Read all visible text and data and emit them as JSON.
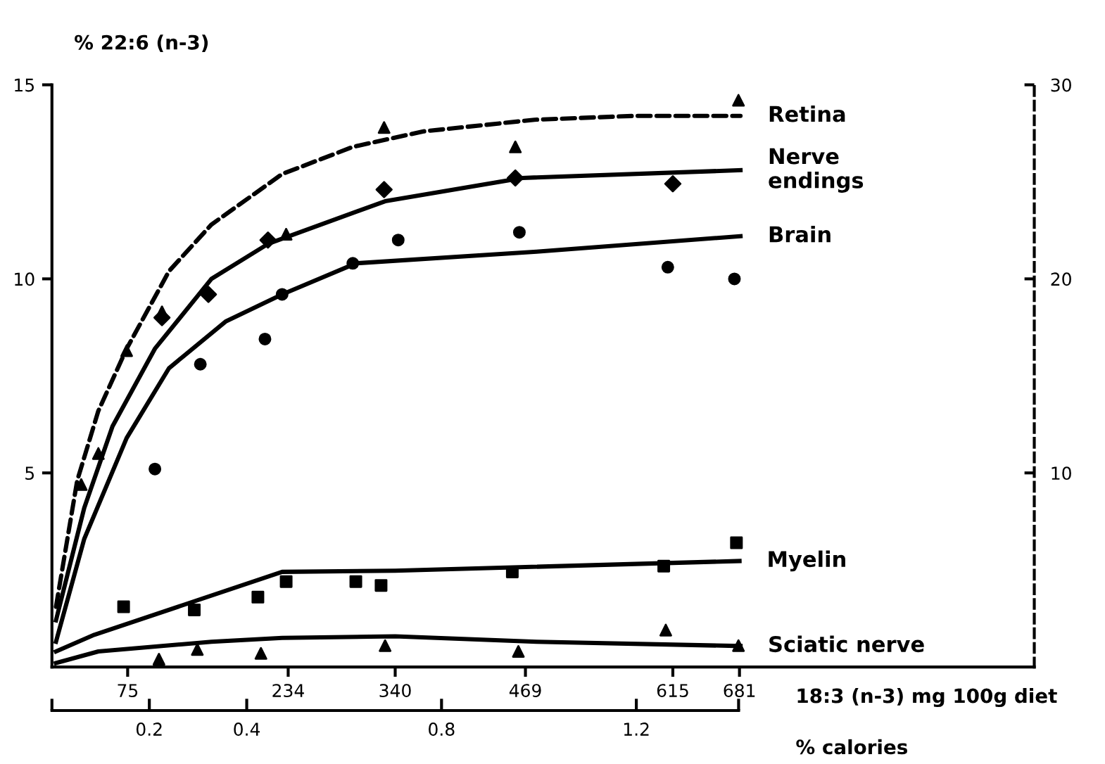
{
  "chart_data": {
    "type": "line",
    "ylabel": "% 22:6 (n-3)",
    "xlabel": "18:3 (n-3) mg 100g diet",
    "x2label": "% calories",
    "xlim": [
      0,
      973
    ],
    "xticks": [
      75,
      234,
      340,
      469,
      615,
      681
    ],
    "x2lim": [
      0,
      1.41
    ],
    "x2ticks": [
      {
        "value": 0,
        "label": null
      },
      0.2,
      0.4,
      0.8,
      1.2,
      {
        "value": 1.41,
        "label": null
      }
    ],
    "ylim": [
      0,
      15
    ],
    "yticks": [
      5,
      10,
      15
    ],
    "y2lim": [
      0,
      30
    ],
    "y2ticks": [
      10,
      20,
      30
    ],
    "legend": false,
    "grid": false,
    "series": [
      {
        "name": "Retina",
        "axis": "y2",
        "color": "#000000",
        "line_style": "dashed",
        "marker": "none",
        "x": [
          4,
          25,
          46,
          74,
          116,
          158,
          228,
          298,
          368,
          478,
          577,
          682
        ],
        "values": [
          3.1,
          9.6,
          13.2,
          16.4,
          20.4,
          22.8,
          25.4,
          26.8,
          27.6,
          28.2,
          28.4,
          28.4
        ]
      },
      {
        "name": "Nerve\nendings",
        "color": "#000000",
        "line_style": "solid",
        "marker": "none",
        "x": [
          4,
          32,
          60,
          102,
          158,
          214,
          330,
          466,
          682
        ],
        "values": [
          1.2,
          4.1,
          6.2,
          8.2,
          10.0,
          10.9,
          12.0,
          12.6,
          12.8
        ]
      },
      {
        "name": "Brain",
        "color": "#000000",
        "line_style": "solid",
        "marker": "none",
        "x": [
          4,
          32,
          74,
          116,
          172,
          228,
          301,
          480,
          682
        ],
        "values": [
          0.65,
          3.3,
          5.9,
          7.7,
          8.9,
          9.6,
          10.4,
          10.7,
          11.1
        ]
      },
      {
        "name": "Myelin",
        "color": "#000000",
        "line_style": "solid",
        "marker": "none",
        "x": [
          4,
          42,
          228,
          340,
          681
        ],
        "values": [
          0.4,
          0.83,
          2.45,
          2.48,
          2.73
        ]
      },
      {
        "name": "Sciatic nerve",
        "color": "#000000",
        "line_style": "solid",
        "marker": "none",
        "x": [
          4,
          46,
          158,
          228,
          340,
          480,
          682
        ],
        "values": [
          0.1,
          0.4,
          0.65,
          0.75,
          0.79,
          0.65,
          0.54
        ]
      },
      {
        "type": "scatter",
        "axis": "y2",
        "color": "#000000",
        "marker": "triangle",
        "x": [
          29,
          46,
          74,
          109,
          232,
          329,
          459,
          680
        ],
        "values": [
          9.4,
          11.0,
          16.3,
          18.3,
          22.3,
          27.8,
          26.8,
          29.2
        ]
      },
      {
        "type": "scatter",
        "color": "#000000",
        "marker": "diamond",
        "x": [
          109,
          155,
          214,
          329,
          459,
          615
        ],
        "values": [
          9.0,
          9.6,
          11.0,
          12.3,
          12.6,
          12.45
        ]
      },
      {
        "type": "scatter",
        "color": "#000000",
        "marker": "circle",
        "x": [
          102,
          147,
          211,
          228,
          298,
          343,
          463,
          610,
          676
        ],
        "values": [
          5.1,
          7.8,
          8.45,
          9.6,
          10.4,
          11.0,
          11.2,
          10.3,
          10.0
        ]
      },
      {
        "type": "scatter",
        "color": "#000000",
        "marker": "square",
        "x": [
          71,
          141,
          204,
          232,
          301,
          326,
          456,
          606,
          678
        ],
        "values": [
          1.55,
          1.47,
          1.8,
          2.2,
          2.2,
          2.1,
          2.45,
          2.6,
          3.2
        ]
      },
      {
        "type": "scatter",
        "color": "#000000",
        "marker": "triangle",
        "x": [
          106,
          144,
          207,
          330,
          462,
          608,
          680
        ],
        "values": [
          0.2,
          0.45,
          0.35,
          0.55,
          0.4,
          0.95,
          0.55
        ]
      }
    ]
  }
}
